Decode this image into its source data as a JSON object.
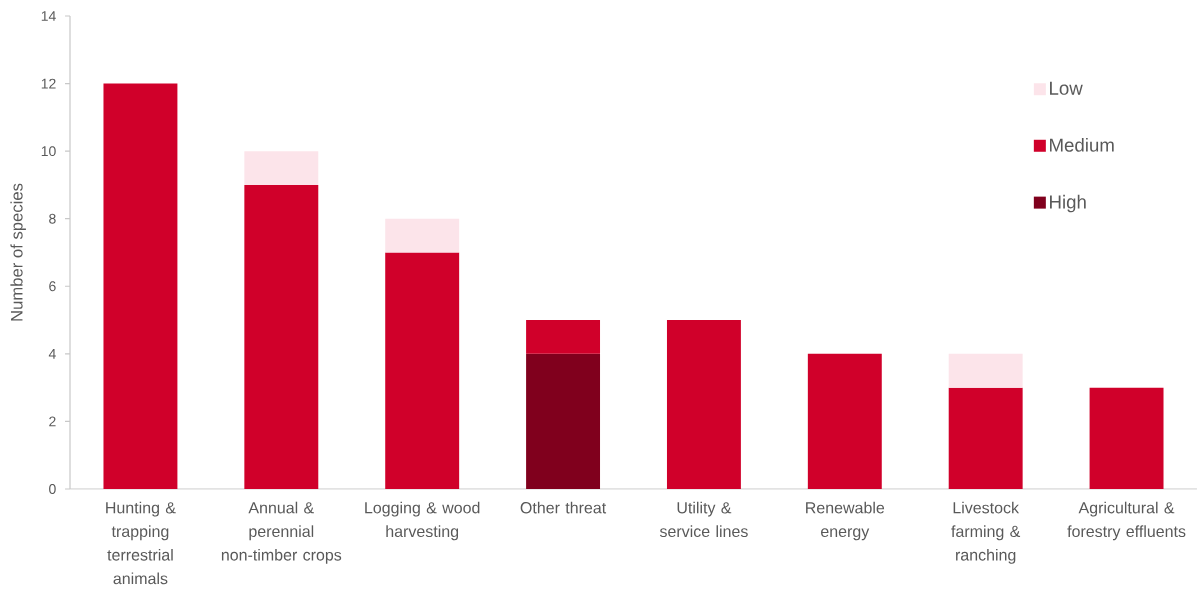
{
  "chart_data": {
    "type": "bar",
    "stacked": true,
    "ylabel": "Number of species",
    "categories": [
      "Hunting & trapping terrestrial animals",
      "Annual & perennial non-timber crops",
      "Logging & wood harvesting",
      "Other threat",
      "Utility & service lines",
      "Renewable energy",
      "Livestock farming & ranching",
      "Agricultural & forestry effluents"
    ],
    "series": [
      {
        "name": "High",
        "color": "#80001d",
        "values": [
          null,
          null,
          null,
          4,
          null,
          null,
          null,
          null
        ]
      },
      {
        "name": "Medium",
        "color": "#d0002a",
        "values": [
          12,
          9,
          7,
          1,
          5,
          4,
          3,
          3
        ]
      },
      {
        "name": "Low",
        "color": "#fce4ea",
        "values": [
          null,
          1,
          1,
          null,
          null,
          null,
          1,
          null
        ]
      }
    ],
    "ylim": [
      0,
      14
    ],
    "yticks": [
      0,
      2,
      4,
      6,
      8,
      10,
      12,
      14
    ],
    "legend": "top right",
    "grid": false
  }
}
